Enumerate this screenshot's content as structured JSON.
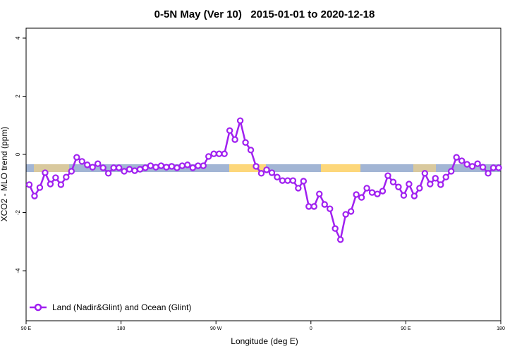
{
  "chart_data": {
    "type": "line",
    "title": "0-5N May (Ver 10)   2015-01-01 to 2020-12-18",
    "x_label": "Longitude (deg E)",
    "y_label": "XCO2 - MLO trend (ppm)",
    "x": [
      93,
      98,
      103,
      108,
      113,
      118,
      123,
      128,
      133,
      138,
      143,
      148,
      153,
      158,
      163,
      168,
      173,
      178,
      183,
      188,
      193,
      198,
      203,
      208,
      213,
      218,
      223,
      228,
      233,
      238,
      243,
      248,
      253,
      258,
      263,
      268,
      273,
      278,
      283,
      288,
      293,
      298,
      303,
      308,
      313,
      318,
      323,
      328,
      333,
      338,
      343,
      348,
      353,
      358,
      363,
      368,
      373,
      378,
      383,
      388,
      393,
      398,
      403,
      408,
      413,
      418,
      423,
      428,
      433,
      438,
      443,
      448,
      453,
      458,
      463,
      468,
      473,
      478,
      483,
      488,
      493,
      498,
      503,
      508,
      513,
      518,
      523,
      528,
      533,
      538
    ],
    "series": [
      {
        "name": "Land (Nadir&Glint) and Ocean (Glint)",
        "color": "#a020f0",
        "values": [
          -1.04,
          -1.43,
          -1.14,
          -0.63,
          -1.02,
          -0.8,
          -1.04,
          -0.78,
          -0.58,
          -0.1,
          -0.24,
          -0.36,
          -0.44,
          -0.32,
          -0.46,
          -0.65,
          -0.46,
          -0.46,
          -0.58,
          -0.51,
          -0.56,
          -0.51,
          -0.46,
          -0.39,
          -0.44,
          -0.39,
          -0.44,
          -0.41,
          -0.46,
          -0.39,
          -0.36,
          -0.46,
          -0.39,
          -0.39,
          -0.07,
          0.02,
          0.02,
          0.02,
          0.82,
          0.51,
          1.16,
          0.41,
          0.15,
          -0.41,
          -0.65,
          -0.53,
          -0.63,
          -0.78,
          -0.9,
          -0.9,
          -0.9,
          -1.16,
          -0.92,
          -1.79,
          -1.79,
          -1.36,
          -1.72,
          -1.87,
          -2.55,
          -2.93,
          -2.06,
          -1.96,
          -1.38,
          -1.48,
          -1.16,
          -1.31,
          -1.36,
          -1.26,
          -0.73,
          -0.95,
          -1.12,
          -1.41,
          -1.02,
          -1.43,
          -1.16,
          -0.65,
          -1.02,
          -0.82,
          -1.04,
          -0.78,
          -0.58,
          -0.1,
          -0.22,
          -0.34,
          -0.41,
          -0.32,
          -0.44,
          -0.65,
          -0.46,
          -0.46
        ]
      }
    ],
    "xlim": [
      90,
      540
    ],
    "ylim": [
      -5.72,
      4.34
    ],
    "xticks": [
      {
        "value": 90,
        "label": "90 E"
      },
      {
        "value": 180,
        "label": "180"
      },
      {
        "value": 270,
        "label": "90 W"
      },
      {
        "value": 360,
        "label": "0"
      },
      {
        "value": 450,
        "label": "90 E"
      },
      {
        "value": 540,
        "label": "180"
      }
    ],
    "yticks": [
      -4,
      -2,
      0,
      2,
      4
    ],
    "legend": "bottom-left"
  }
}
